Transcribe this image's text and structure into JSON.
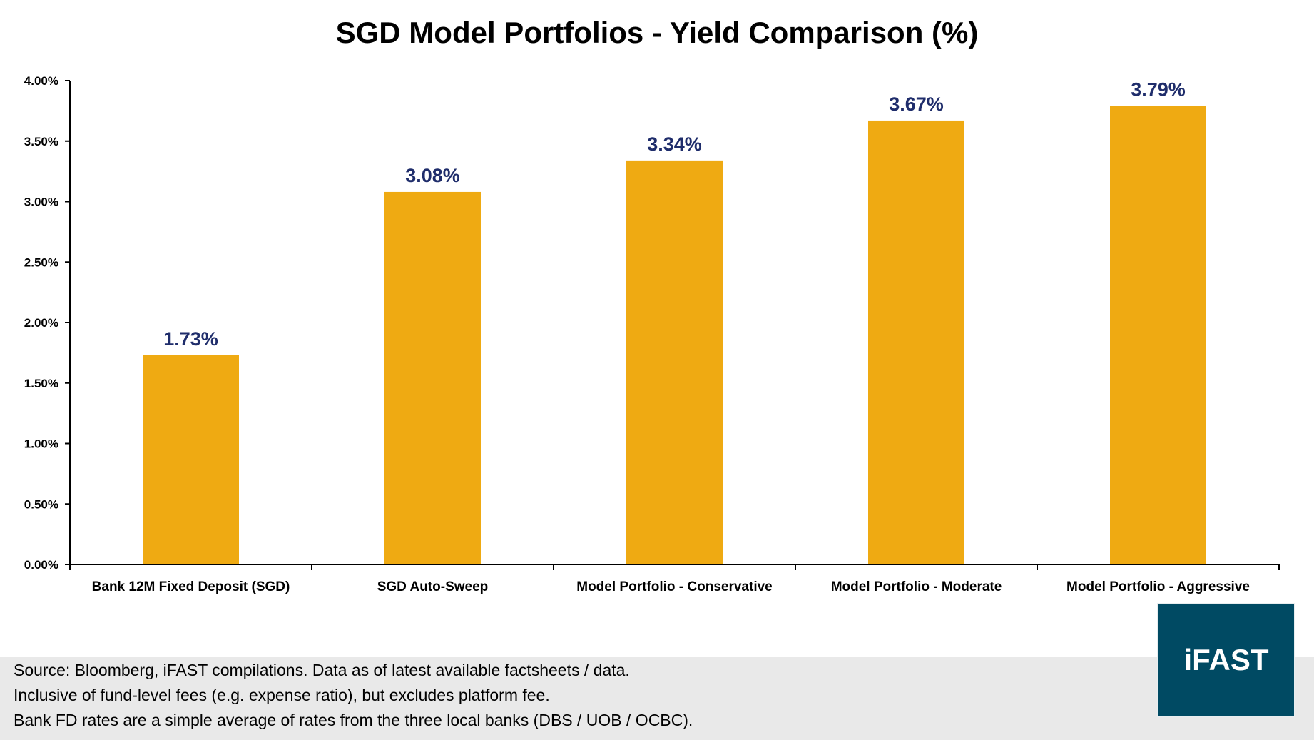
{
  "chart_data": {
    "type": "bar",
    "title": "SGD Model Portfolios - Yield Comparison (%)",
    "categories": [
      "Bank 12M Fixed Deposit (SGD)",
      "SGD Auto-Sweep",
      "Model Portfolio - Conservative",
      "Model Portfolio - Moderate",
      "Model Portfolio - Aggressive"
    ],
    "values": [
      1.73,
      3.08,
      3.34,
      3.67,
      3.79
    ],
    "data_labels": [
      "1.73%",
      "3.08%",
      "3.34%",
      "3.67%",
      "3.79%"
    ],
    "ylim": [
      0,
      4
    ],
    "yticks": [
      "0.00%",
      "0.50%",
      "1.00%",
      "1.50%",
      "2.00%",
      "2.50%",
      "3.00%",
      "3.50%",
      "4.00%"
    ],
    "xlabel": "",
    "ylabel": "",
    "grid": false,
    "legend": "none",
    "colors": {
      "bar": "#EFAA12",
      "data_label": "#1F2D6B"
    }
  },
  "footer": {
    "notes": [
      "Source: Bloomberg, iFAST compilations. Data as of latest available factsheets / data.",
      "Inclusive of fund-level fees (e.g. expense ratio), but excludes platform fee.",
      "Bank FD rates are a simple average of rates from the three local banks (DBS / UOB / OCBC)."
    ]
  },
  "logo": {
    "text": "iFAST",
    "color": "#004A63"
  }
}
